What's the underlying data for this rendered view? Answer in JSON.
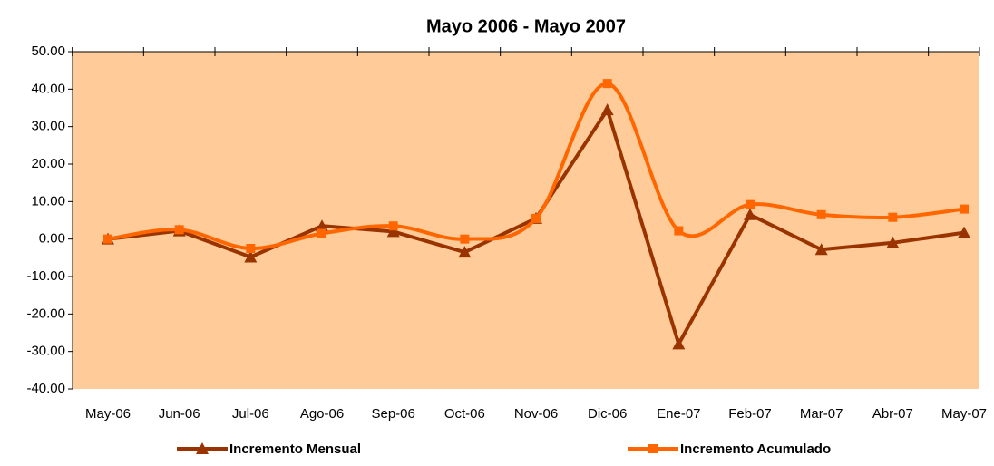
{
  "chart_data": {
    "type": "line",
    "title": "Mayo 2006 - Mayo 2007",
    "categories": [
      "May-06",
      "Jun-06",
      "Jul-06",
      "Ago-06",
      "Sep-06",
      "Oct-06",
      "Nov-06",
      "Dic-06",
      "Ene-07",
      "Feb-07",
      "Mar-07",
      "Abr-07",
      "May-07"
    ],
    "series": [
      {
        "name": "Incremento Mensual",
        "color": "#993300",
        "marker": "triangle",
        "smooth": false,
        "values": [
          0,
          2.2,
          -4.8,
          3.5,
          2.0,
          -3.5,
          5.5,
          34.5,
          -28,
          6.5,
          -2.8,
          -1,
          1.7
        ]
      },
      {
        "name": "Incremento Acumulado",
        "color": "#FF6600",
        "marker": "square",
        "smooth": true,
        "values": [
          0,
          2.5,
          -2.5,
          1.5,
          3.5,
          0,
          5.5,
          41.5,
          2.2,
          9.2,
          6.5,
          5.8,
          8
        ]
      }
    ],
    "ylim": [
      -40,
      50
    ],
    "yticks": [
      {
        "value": -40,
        "label": "-40.00"
      },
      {
        "value": -30,
        "label": "-30.00"
      },
      {
        "value": -20,
        "label": "-20.00"
      },
      {
        "value": -10,
        "label": "-10.00"
      },
      {
        "value": 0,
        "label": "0.00"
      },
      {
        "value": 10,
        "label": "10.00"
      },
      {
        "value": 20,
        "label": "20.00"
      },
      {
        "value": 30,
        "label": "30.00"
      },
      {
        "value": 40,
        "label": "40.00"
      },
      {
        "value": 50,
        "label": "50.00"
      }
    ],
    "plot_background": "#FFCC99",
    "legend": "bottom"
  }
}
